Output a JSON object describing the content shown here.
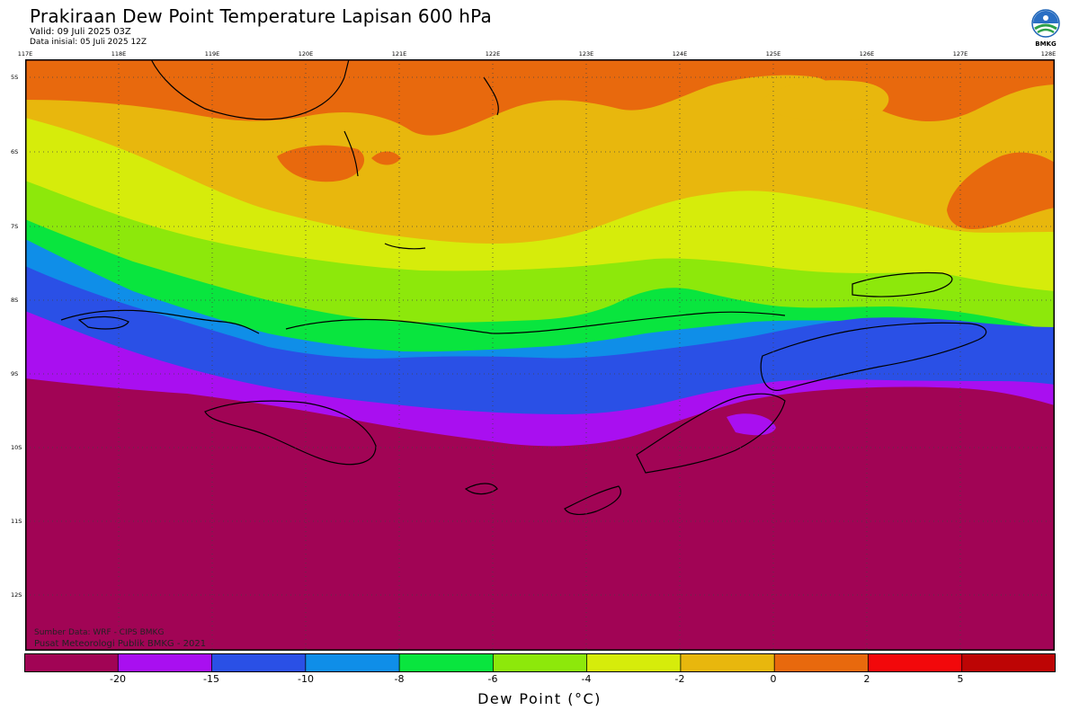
{
  "header": {
    "title": "Prakiraan Dew Point Temperature Lapisan 600 hPa",
    "valid": "Valid: 09 Juli 2025 03Z",
    "init": "Data inisial: 05 Juli 2025 12Z"
  },
  "logo": {
    "label": "BMKG"
  },
  "axes": {
    "longitude_labels": [
      "117E",
      "118E",
      "119E",
      "120E",
      "121E",
      "122E",
      "123E",
      "124E",
      "125E",
      "126E",
      "127E",
      "128E"
    ],
    "latitude_labels": [
      "5S",
      "6S",
      "7S",
      "8S",
      "9S",
      "10S",
      "11S",
      "12S"
    ]
  },
  "credits": {
    "source": "Sumber Data: WRF - CIPS BMKG",
    "org": "Pusat Meteorologi Publik BMKG - 2021"
  },
  "legend": {
    "unit_label": "Dew Point (°C)",
    "tick_labels": [
      "-20",
      "-15",
      "-10",
      "-8",
      "-6",
      "-4",
      "-2",
      "0",
      "2",
      "5"
    ],
    "bins": [
      {
        "color": "#a10455"
      },
      {
        "color": "#a90ff0"
      },
      {
        "color": "#2a50e6"
      },
      {
        "color": "#0f8ee8"
      },
      {
        "color": "#09e53e"
      },
      {
        "color": "#8de80b"
      },
      {
        "color": "#d6ec0b"
      },
      {
        "color": "#e8b70d"
      },
      {
        "color": "#e8690d"
      },
      {
        "color": "#f2080b"
      },
      {
        "color": "#bd0505"
      }
    ]
  }
}
